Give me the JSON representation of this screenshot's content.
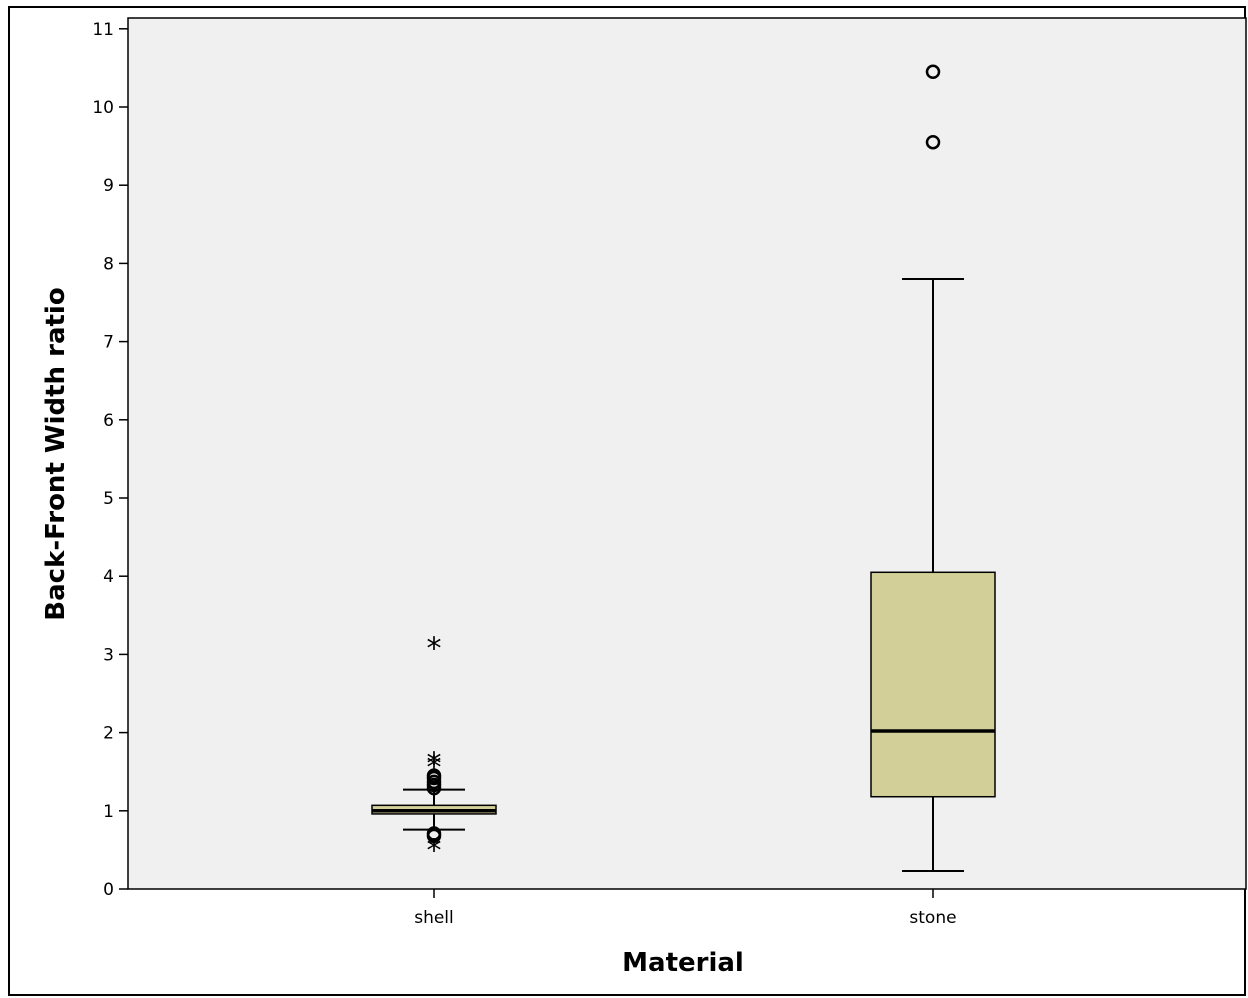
{
  "chart_data": {
    "type": "boxplot",
    "title": "",
    "xlabel": "Material",
    "ylabel": "Back-Front Width ratio",
    "ylim": [
      0,
      11
    ],
    "yticks": [
      "0",
      "1",
      "2",
      "3",
      "4",
      "5",
      "6",
      "7",
      "8",
      "9",
      "10",
      "11"
    ],
    "grid": false,
    "colors": {
      "plot_bg": "#f0f0f0",
      "box_fill": "#d3cf98",
      "stroke": "#000000"
    },
    "categories": [
      "shell",
      "stone"
    ],
    "boxes": [
      {
        "category": "shell",
        "whisker_low": 0.76,
        "q1": 0.96,
        "median": 1.0,
        "q3": 1.07,
        "whisker_high": 1.27,
        "outliers": [
          0.68,
          0.71,
          1.29,
          1.33,
          1.37,
          1.42,
          1.45
        ],
        "extremes": [
          0.52,
          1.58,
          1.63,
          3.1
        ]
      },
      {
        "category": "stone",
        "whisker_low": 0.23,
        "q1": 1.18,
        "median": 2.02,
        "q3": 4.05,
        "whisker_high": 7.8,
        "outliers": [
          9.55,
          10.45
        ],
        "extremes": []
      }
    ]
  }
}
